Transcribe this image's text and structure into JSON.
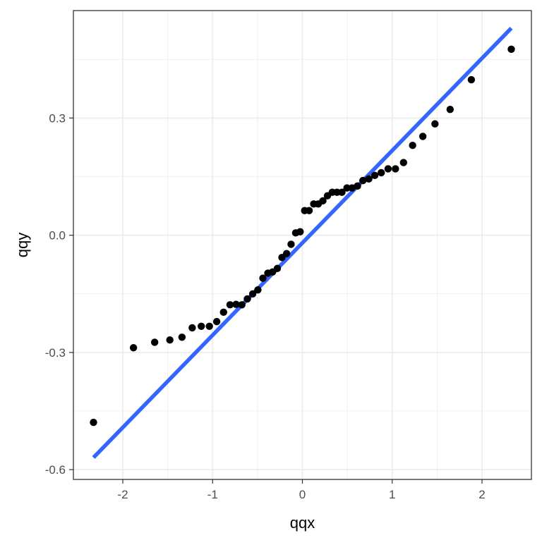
{
  "chart_data": {
    "type": "scatter",
    "title": "",
    "xlabel": "qqx",
    "ylabel": "qqy",
    "xlim": [
      -2.55,
      2.55
    ],
    "ylim": [
      -0.625,
      0.575
    ],
    "x_ticks": [
      -2,
      -1,
      0,
      1,
      2
    ],
    "x_tick_labels": [
      "-2",
      "-1",
      "0",
      "1",
      "2"
    ],
    "y_ticks": [
      -0.6,
      -0.3,
      0.0,
      0.3
    ],
    "y_tick_labels": [
      "-0.6",
      "-0.3",
      "0.0",
      "0.3"
    ],
    "x_minor_ticks": [
      -1.5,
      -0.5,
      0.5,
      1.5
    ],
    "y_minor_ticks": [
      -0.45,
      -0.15,
      0.15,
      0.45
    ],
    "grid": true,
    "theme": "bw",
    "colors": {
      "points": "#000000",
      "line": "#3366FF",
      "grid": "#ebebeb",
      "panel_border": "#333333"
    },
    "series": [
      {
        "type": "scatter",
        "points": [
          [
            -2.326,
            -0.479
          ],
          [
            -1.881,
            -0.288
          ],
          [
            -1.645,
            -0.274
          ],
          [
            -1.476,
            -0.268
          ],
          [
            -1.341,
            -0.261
          ],
          [
            -1.227,
            -0.237
          ],
          [
            -1.126,
            -0.233
          ],
          [
            -1.036,
            -0.233
          ],
          [
            -0.954,
            -0.221
          ],
          [
            -0.878,
            -0.197
          ],
          [
            -0.806,
            -0.178
          ],
          [
            -0.739,
            -0.177
          ],
          [
            -0.674,
            -0.178
          ],
          [
            -0.613,
            -0.163
          ],
          [
            -0.553,
            -0.15
          ],
          [
            -0.496,
            -0.14
          ],
          [
            -0.44,
            -0.11
          ],
          [
            -0.385,
            -0.097
          ],
          [
            -0.332,
            -0.094
          ],
          [
            -0.279,
            -0.085
          ],
          [
            -0.228,
            -0.057
          ],
          [
            -0.176,
            -0.047
          ],
          [
            -0.126,
            -0.023
          ],
          [
            -0.075,
            0.006
          ],
          [
            -0.025,
            0.009
          ],
          [
            0.025,
            0.063
          ],
          [
            0.075,
            0.063
          ],
          [
            0.126,
            0.08
          ],
          [
            0.176,
            0.08
          ],
          [
            0.228,
            0.088
          ],
          [
            0.279,
            0.101
          ],
          [
            0.332,
            0.11
          ],
          [
            0.385,
            0.11
          ],
          [
            0.44,
            0.11
          ],
          [
            0.496,
            0.121
          ],
          [
            0.553,
            0.121
          ],
          [
            0.613,
            0.126
          ],
          [
            0.674,
            0.14
          ],
          [
            0.739,
            0.144
          ],
          [
            0.806,
            0.153
          ],
          [
            0.878,
            0.16
          ],
          [
            0.954,
            0.17
          ],
          [
            1.036,
            0.17
          ],
          [
            1.126,
            0.186
          ],
          [
            1.227,
            0.23
          ],
          [
            1.341,
            0.253
          ],
          [
            1.476,
            0.285
          ],
          [
            1.645,
            0.322
          ],
          [
            1.881,
            0.398
          ],
          [
            2.326,
            0.476
          ]
        ]
      },
      {
        "type": "line",
        "points": [
          [
            -2.326,
            -0.569
          ],
          [
            2.326,
            0.53
          ]
        ]
      }
    ]
  }
}
